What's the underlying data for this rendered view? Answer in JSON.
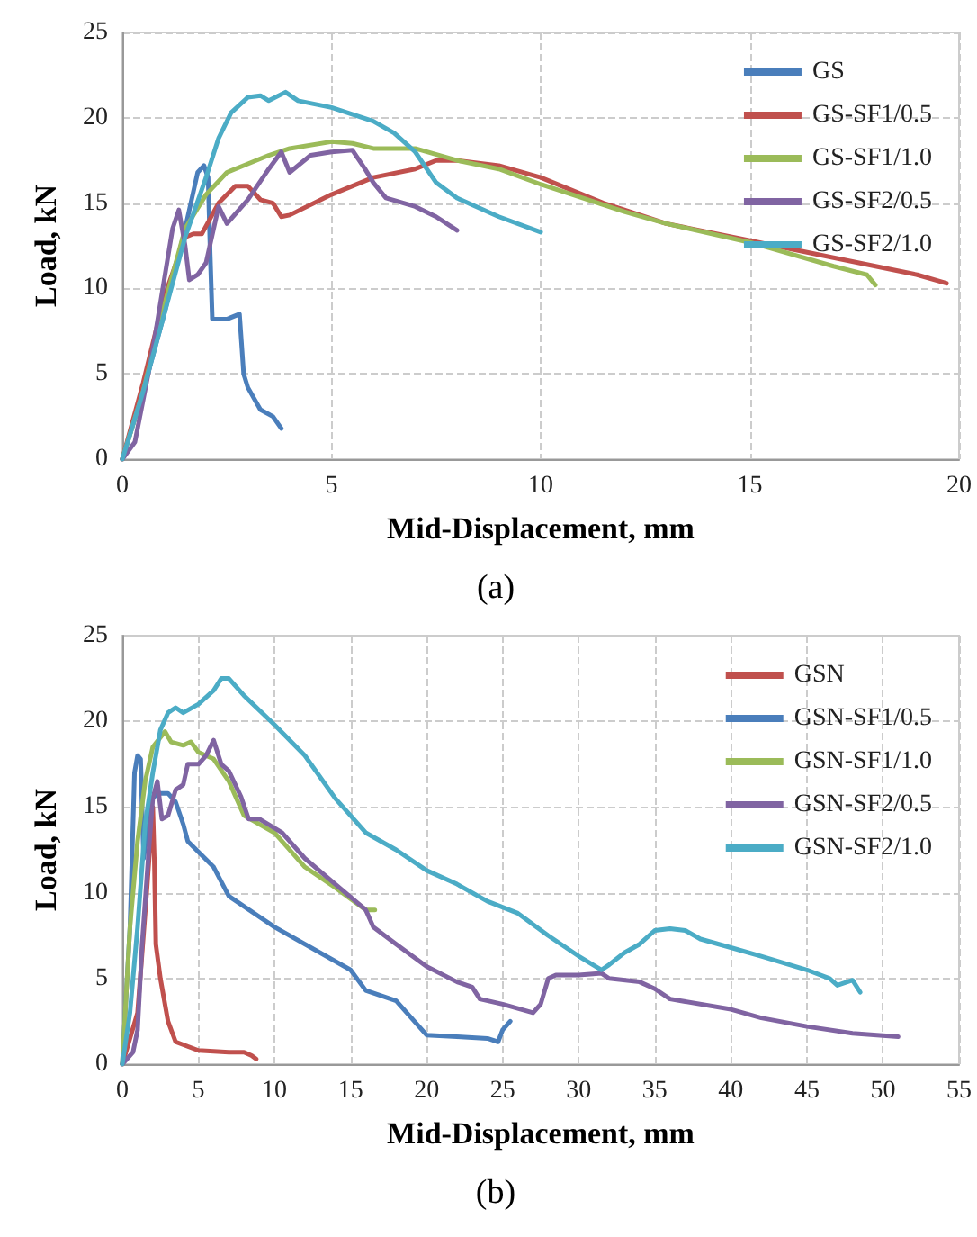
{
  "chart_data": [
    {
      "type": "line",
      "title": "(a)",
      "xlabel": "Mid-Displacement, mm",
      "ylabel": "Load, kN",
      "xlim": [
        0,
        20
      ],
      "xticks": [
        0,
        5,
        10,
        15,
        20
      ],
      "ylim": [
        0,
        25
      ],
      "yticks": [
        0,
        5,
        10,
        15,
        20,
        25
      ],
      "grid": true,
      "legend": "top right",
      "marker": "none",
      "line_style": "solid",
      "series": [
        {
          "name": "GS",
          "color": "#4a7ebb",
          "x": [
            0,
            0.5,
            1,
            1.5,
            1.8,
            1.95,
            2.05,
            2.1,
            2.15,
            2.5,
            2.8,
            2.9,
            3.0,
            3.3,
            3.6,
            3.8
          ],
          "values": [
            0,
            4,
            8.5,
            13.5,
            16.8,
            17.2,
            16.5,
            12,
            8.2,
            8.2,
            8.5,
            5,
            4.2,
            2.9,
            2.5,
            1.8
          ]
        },
        {
          "name": "GS-SF1/0.5",
          "color": "#c0504d",
          "x": [
            0,
            0.5,
            1,
            1.5,
            1.7,
            1.9,
            2.3,
            2.7,
            3.0,
            3.3,
            3.6,
            3.8,
            4,
            5,
            6,
            7,
            7.5,
            8,
            9,
            10,
            11,
            11.5,
            12,
            13,
            15,
            17,
            19,
            19.7
          ],
          "values": [
            0,
            4.5,
            9.5,
            13,
            13.2,
            13.2,
            15,
            16,
            16,
            15.2,
            15,
            14.2,
            14.3,
            15.5,
            16.5,
            17,
            17.5,
            17.5,
            17.2,
            16.5,
            15.5,
            15,
            14.6,
            13.8,
            12.8,
            11.8,
            10.8,
            10.3
          ]
        },
        {
          "name": "GS-SF1/1.0",
          "color": "#9bbb59",
          "x": [
            0,
            0.5,
            1,
            1.5,
            2,
            2.5,
            3,
            3.5,
            4,
            5,
            5.5,
            6,
            7,
            8,
            9,
            10,
            11,
            12,
            13,
            15,
            17,
            17.8,
            18
          ],
          "values": [
            0,
            4,
            9,
            13.5,
            15.5,
            16.8,
            17.3,
            17.8,
            18.2,
            18.6,
            18.5,
            18.2,
            18.2,
            17.5,
            17,
            16.1,
            15.3,
            14.5,
            13.8,
            12.7,
            11.3,
            10.8,
            10.2
          ]
        },
        {
          "name": "GS-SF2/0.5",
          "color": "#8064a2",
          "x": [
            0,
            0.3,
            0.7,
            1.0,
            1.2,
            1.35,
            1.5,
            1.6,
            1.8,
            2,
            2.3,
            2.5,
            3,
            3.5,
            3.8,
            4,
            4.5,
            5,
            5.5,
            5.8,
            6,
            6.3,
            7,
            7.5,
            8
          ],
          "values": [
            0,
            1,
            6,
            10.5,
            13.5,
            14.6,
            12.5,
            10.5,
            10.8,
            11.5,
            14.8,
            13.8,
            15.2,
            17,
            18,
            16.8,
            17.8,
            18,
            18.1,
            17,
            16.2,
            15.3,
            14.8,
            14.2,
            13.4
          ]
        },
        {
          "name": "GS-SF2/1.0",
          "color": "#4bacc6",
          "x": [
            0,
            0.5,
            1,
            1.5,
            2,
            2.3,
            2.6,
            3,
            3.3,
            3.5,
            3.9,
            4.2,
            5,
            6,
            6.5,
            7,
            7.5,
            8,
            9,
            10
          ],
          "values": [
            0,
            4,
            8.5,
            13,
            16.5,
            18.8,
            20.3,
            21.2,
            21.3,
            21,
            21.5,
            21,
            20.6,
            19.8,
            19.1,
            18,
            16.2,
            15.3,
            14.2,
            13.3
          ]
        }
      ]
    },
    {
      "type": "line",
      "title": "(b)",
      "xlabel": "Mid-Displacement, mm",
      "ylabel": "Load, kN",
      "xlim": [
        0,
        55
      ],
      "xticks": [
        0,
        5,
        10,
        15,
        20,
        25,
        30,
        35,
        40,
        45,
        50,
        55
      ],
      "ylim": [
        0,
        25
      ],
      "yticks": [
        0,
        5,
        10,
        15,
        20,
        25
      ],
      "grid": true,
      "legend": "top right",
      "marker": "none",
      "line_style": "solid",
      "series": [
        {
          "name": "GSN",
          "color": "#c0504d",
          "x": [
            0,
            1,
            1.6,
            2,
            2.1,
            2.2,
            2.5,
            3,
            3.5,
            5,
            7,
            8,
            8.5,
            8.8
          ],
          "values": [
            0,
            3,
            10,
            15,
            12,
            7,
            5,
            2.5,
            1.3,
            0.8,
            0.7,
            0.7,
            0.5,
            0.3
          ]
        },
        {
          "name": "GSN-SF1/0.5",
          "color": "#4a7ebb",
          "x": [
            0,
            0.5,
            0.8,
            1,
            1.2,
            1.4,
            1.7,
            2,
            2.3,
            3,
            3.5,
            4,
            4.3,
            6,
            7,
            10,
            15,
            16,
            18,
            20,
            22,
            24,
            24.7,
            25,
            25.5
          ],
          "values": [
            0,
            8,
            17,
            18,
            17.8,
            12,
            14,
            15.5,
            15.8,
            15.8,
            15.3,
            14,
            13,
            11.5,
            9.8,
            8,
            5.5,
            4.3,
            3.7,
            1.7,
            1.6,
            1.5,
            1.3,
            2,
            2.5
          ]
        },
        {
          "name": "GSN-SF1/1.0",
          "color": "#9bbb59",
          "x": [
            0,
            0.5,
            1,
            1.5,
            2,
            2.8,
            3.2,
            4,
            4.5,
            5,
            6,
            7,
            8,
            10,
            12,
            14,
            16,
            16.6
          ],
          "values": [
            0,
            8,
            13,
            16.5,
            18.5,
            19.4,
            18.8,
            18.6,
            18.8,
            18.2,
            17.8,
            16.5,
            14.5,
            13.5,
            11.5,
            10.3,
            9,
            9
          ]
        },
        {
          "name": "GSN-SF2/0.5",
          "color": "#8064a2",
          "x": [
            0,
            0.7,
            1,
            1.3,
            1.7,
            2,
            2.3,
            2.6,
            3,
            3.5,
            4,
            4.3,
            5,
            5.5,
            6,
            6.5,
            7,
            7.8,
            8.3,
            9,
            10.5,
            12,
            14,
            16,
            16.5,
            18,
            20,
            22,
            23,
            23.5,
            25,
            27,
            27.5,
            28,
            28.5,
            30,
            31.5,
            32,
            34,
            35,
            36,
            40,
            42,
            45,
            48,
            51
          ],
          "values": [
            0,
            0.7,
            2,
            7,
            12,
            15.5,
            16.5,
            14.3,
            14.5,
            16,
            16.3,
            17.5,
            17.5,
            18,
            18.9,
            17.5,
            17.1,
            15.6,
            14.3,
            14.3,
            13.5,
            12,
            10.5,
            9,
            8,
            7,
            5.7,
            4.8,
            4.5,
            3.8,
            3.5,
            3,
            3.5,
            5,
            5.2,
            5.2,
            5.3,
            5,
            4.8,
            4.4,
            3.8,
            3.2,
            2.7,
            2.2,
            1.8,
            1.6
          ]
        },
        {
          "name": "GSN-SF2/1.0",
          "color": "#4bacc6",
          "x": [
            0,
            0.5,
            1,
            1.5,
            2,
            2.5,
            3,
            3.5,
            4,
            5,
            6,
            6.5,
            7,
            8,
            10,
            12,
            14,
            16,
            18,
            20,
            22,
            24,
            26,
            28,
            30,
            31.5,
            32,
            33,
            34,
            35,
            36,
            37,
            38,
            40,
            42,
            45,
            46.5,
            47,
            48,
            48.5
          ],
          "values": [
            0,
            3,
            8,
            14,
            17,
            19.5,
            20.5,
            20.8,
            20.5,
            21,
            21.8,
            22.5,
            22.5,
            21.5,
            19.8,
            18,
            15.5,
            13.5,
            12.5,
            11.3,
            10.5,
            9.5,
            8.8,
            7.5,
            6.3,
            5.5,
            5.8,
            6.5,
            7,
            7.8,
            7.9,
            7.8,
            7.3,
            6.8,
            6.3,
            5.5,
            5,
            4.6,
            4.9,
            4.2
          ]
        }
      ]
    }
  ]
}
